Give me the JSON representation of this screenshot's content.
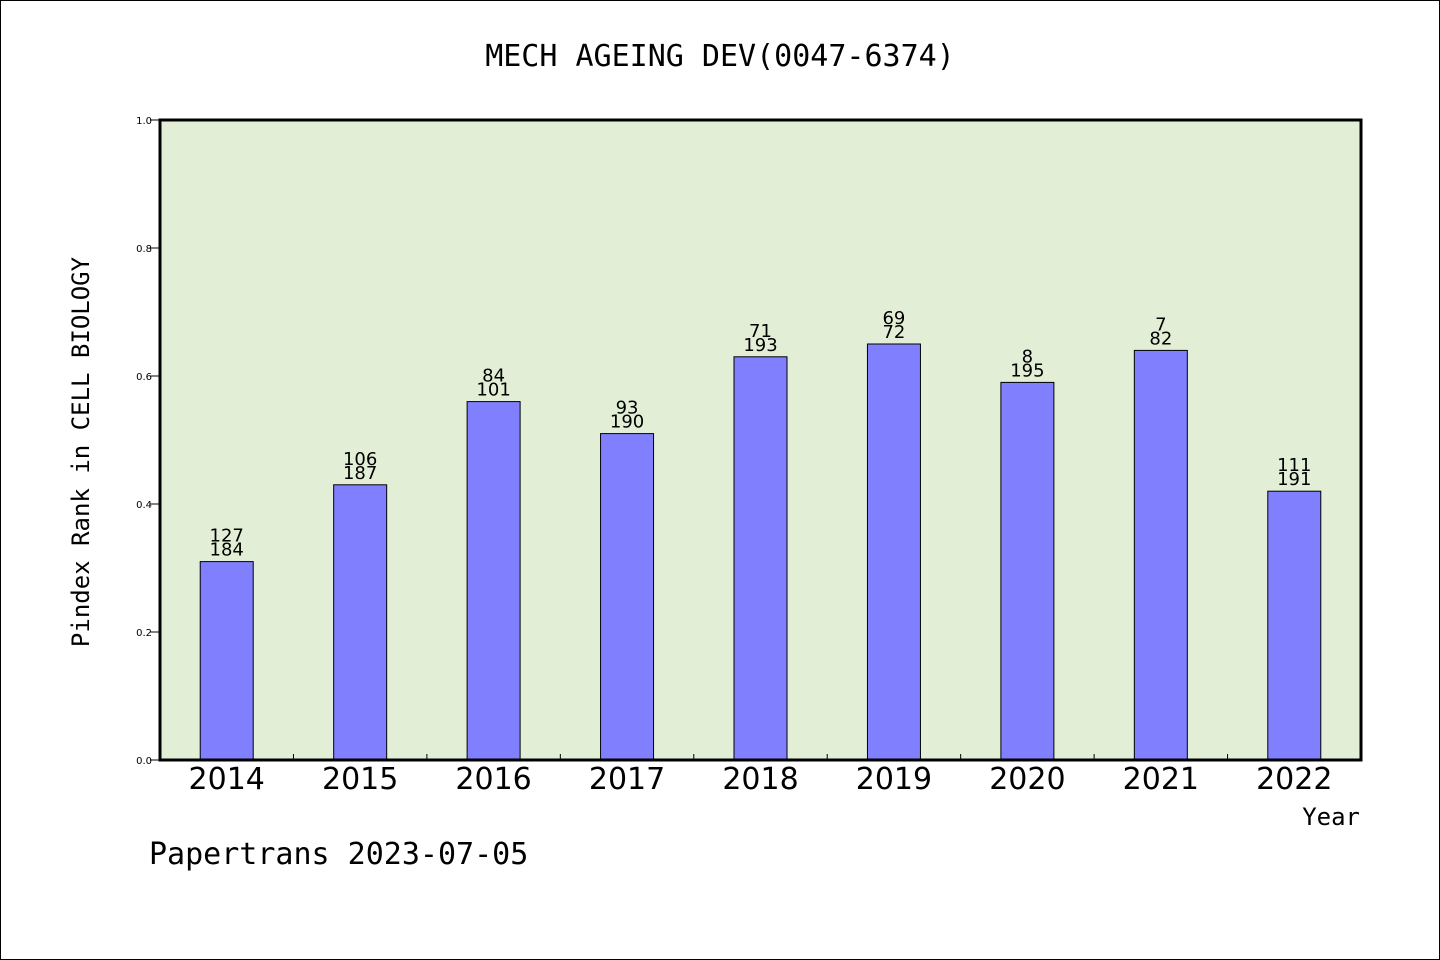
{
  "colors": {
    "plot_background": "#e2efd6",
    "bar_fill": "#8080ff",
    "bar_stroke": "#000000",
    "axis": "#000000"
  },
  "footer": "Papertrans 2023-07-05",
  "chart_data": {
    "type": "bar",
    "title": "MECH AGEING DEV(0047-6374)",
    "xlabel": "Year",
    "ylabel": "Pindex Rank in CELL BIOLOGY",
    "ylim": [
      0,
      1.0
    ],
    "yticks": [
      "0.0",
      "0.2",
      "0.4",
      "0.6",
      "0.8",
      "1.0"
    ],
    "ytick_values": [
      0,
      0.2,
      0.4,
      0.6,
      0.8,
      1.0
    ],
    "grid": false,
    "categories": [
      "2014",
      "2015",
      "2016",
      "2017",
      "2018",
      "2019",
      "2020",
      "2021",
      "2022"
    ],
    "values": [
      0.31,
      0.43,
      0.56,
      0.51,
      0.63,
      0.65,
      0.59,
      0.64,
      0.42
    ],
    "labels_top": [
      "127",
      "106",
      "84",
      "93",
      "71",
      "69",
      "8",
      "7",
      "111"
    ],
    "labels_bottom": [
      "184",
      "187",
      "101",
      "190",
      "193",
      "72",
      "195",
      "82",
      "191"
    ]
  }
}
